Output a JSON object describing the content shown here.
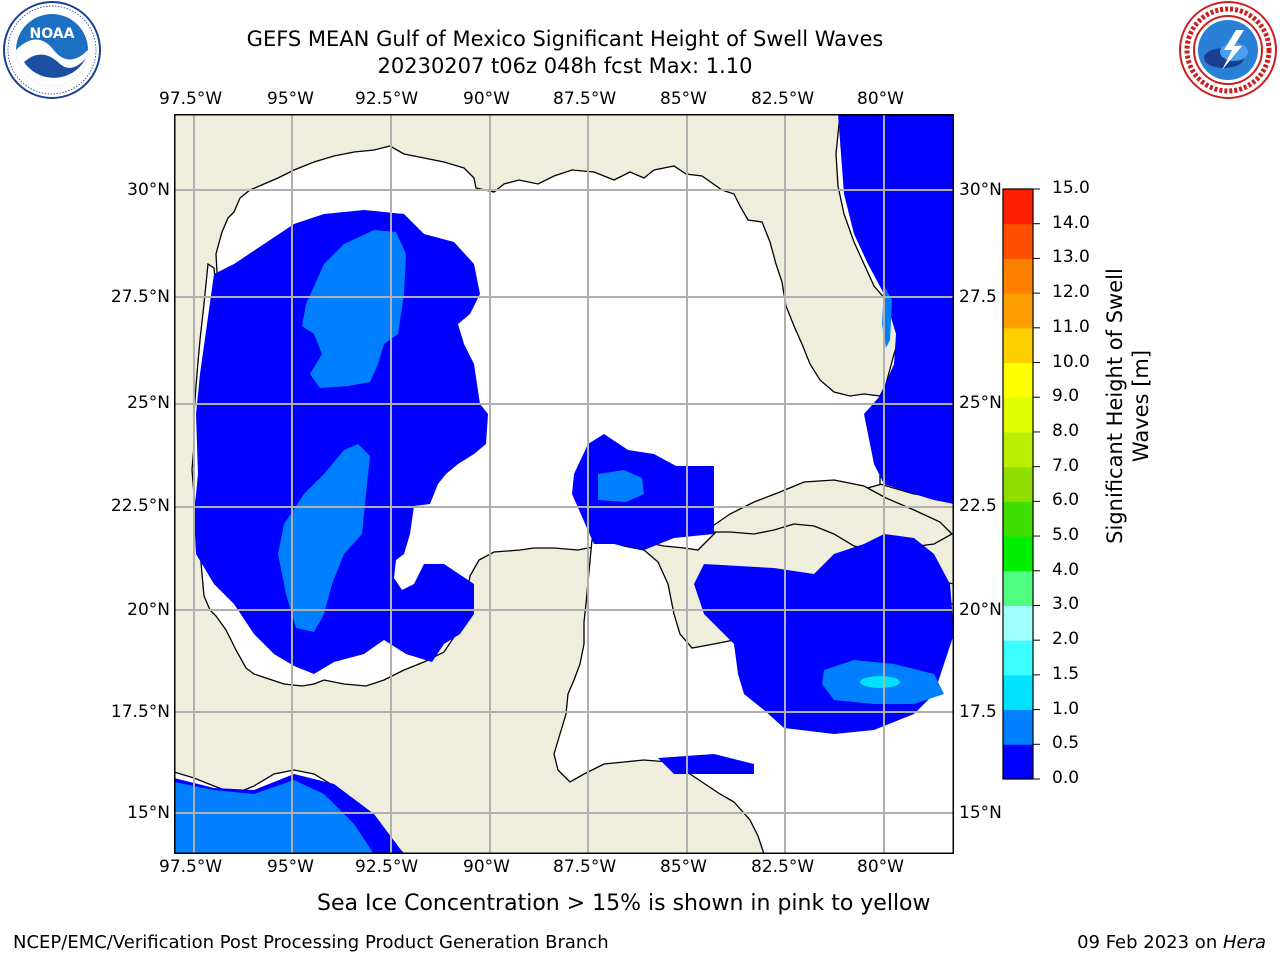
{
  "title": {
    "line1": "GEFS MEAN Gulf of Mexico Significant Height of Swell Waves",
    "line2": "20230207 t06z 048h fcst   Max: 1.10"
  },
  "logos": {
    "noaa_text": "NOAA",
    "nws_text": "NATIONAL WEATHER SERVICE"
  },
  "map": {
    "lon_labels": [
      "97.5°W",
      "95°W",
      "92.5°W",
      "90°W",
      "87.5°W",
      "85°W",
      "82.5°W",
      "80°W"
    ],
    "lat_labels_left": [
      "30°N",
      "27.5°N",
      "25°N",
      "22.5°N",
      "20°N",
      "17.5°N",
      "15°N"
    ],
    "lat_labels_right": [
      "30°N",
      "27.5",
      "25°N",
      "22.5",
      "20°N",
      "17.5",
      "15°N"
    ],
    "colors": {
      "land": "#efeedd",
      "ocean_calm": "#ffffff",
      "swell_0": "#0000ff",
      "swell_05": "#0080ff",
      "swell_10": "#00e0ff",
      "grid": "#b0b0b0"
    }
  },
  "colorbar": {
    "label_line1": "Significant Height of Swell",
    "label_line2": "Waves [m]",
    "ticks": [
      "0.0",
      "0.5",
      "1.0",
      "1.5",
      "2.0",
      "3.0",
      "4.0",
      "5.0",
      "6.0",
      "7.0",
      "8.0",
      "9.0",
      "10.0",
      "11.0",
      "12.0",
      "13.0",
      "14.0",
      "15.0"
    ],
    "colors": [
      "#0000ff",
      "#0080ff",
      "#00e0ff",
      "#3cffff",
      "#a0ffff",
      "#50ff80",
      "#00ee00",
      "#40dd00",
      "#90dd00",
      "#bbee00",
      "#ddff00",
      "#ffff00",
      "#ffd000",
      "#ffa000",
      "#ff8000",
      "#ff5000",
      "#ff2000",
      "#ff0000"
    ]
  },
  "notes": {
    "sea_ice": "Sea Ice Concentration > 15% is shown in pink to yellow",
    "branch": "NCEP/EMC/Verification Post Processing Product Generation Branch",
    "date": "09 Feb 2023 on ",
    "host": "Hera"
  }
}
